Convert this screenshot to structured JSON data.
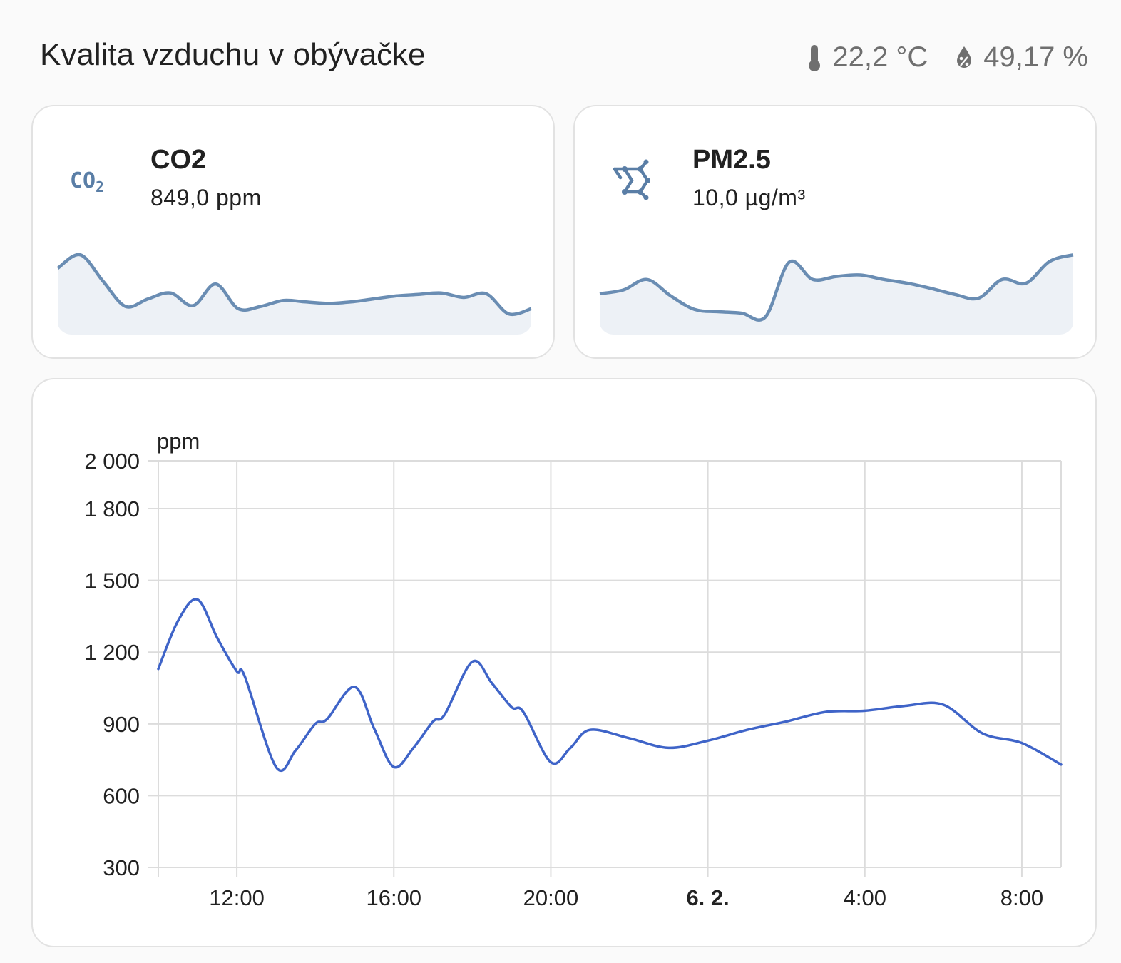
{
  "header": {
    "title": "Kvalita vzduchu v obývačke",
    "temperature": "22,2 °C",
    "humidity": "49,17 %"
  },
  "colors": {
    "accent": "#6a8db3",
    "spark_fill": "#edf1f6",
    "line": "#3f64c8",
    "grid": "#dcdcdc"
  },
  "sensors": [
    {
      "name": "CO2",
      "value": "849,0 ppm",
      "icon": "co2-icon"
    },
    {
      "name": "PM2.5",
      "value": "10,0 µg/m³",
      "icon": "molecule-icon"
    }
  ],
  "chart_data": {
    "type": "line",
    "ylabel": "ppm",
    "y_ticks": [
      "2 000",
      "1 800",
      "1 500",
      "1 200",
      "900",
      "600",
      "300"
    ],
    "y_tick_values": [
      2000,
      1800,
      1500,
      1200,
      900,
      600,
      300
    ],
    "ylim": [
      300,
      2000
    ],
    "x_ticks": [
      {
        "label": "12:00",
        "h": 12,
        "bold": false
      },
      {
        "label": "16:00",
        "h": 16,
        "bold": false
      },
      {
        "label": "20:00",
        "h": 20,
        "bold": false
      },
      {
        "label": "6. 2.",
        "h": 24,
        "bold": true
      },
      {
        "label": "4:00",
        "h": 28,
        "bold": false
      },
      {
        "label": "8:00",
        "h": 32,
        "bold": false
      }
    ],
    "xlim_hours": [
      10,
      33
    ],
    "grid": true,
    "series": [
      {
        "x_hours": [
          10,
          10.5,
          11,
          11.5,
          12,
          12.2,
          13,
          13.5,
          14,
          14.3,
          15,
          15.5,
          16,
          16.5,
          17,
          17.3,
          18,
          18.5,
          19,
          19.3,
          20,
          20.5,
          21,
          22,
          23,
          24,
          25,
          26,
          27,
          28,
          29,
          30,
          31,
          32,
          33
        ],
        "values": [
          1130,
          1330,
          1420,
          1260,
          1120,
          1100,
          720,
          790,
          900,
          920,
          1055,
          880,
          720,
          800,
          910,
          940,
          1160,
          1070,
          970,
          950,
          740,
          800,
          875,
          840,
          800,
          830,
          875,
          910,
          950,
          955,
          975,
          980,
          860,
          820,
          730
        ]
      }
    ]
  },
  "sparklines": {
    "co2": [
      0.79,
      0.97,
      0.62,
      0.28,
      0.38,
      0.46,
      0.29,
      0.58,
      0.25,
      0.28,
      0.36,
      0.34,
      0.32,
      0.34,
      0.38,
      0.42,
      0.44,
      0.46,
      0.4,
      0.45,
      0.18,
      0.25
    ],
    "pm25": [
      0.45,
      0.5,
      0.64,
      0.42,
      0.24,
      0.21,
      0.19,
      0.14,
      0.87,
      0.64,
      0.68,
      0.7,
      0.64,
      0.59,
      0.52,
      0.44,
      0.39,
      0.64,
      0.59,
      0.88,
      0.97
    ]
  }
}
